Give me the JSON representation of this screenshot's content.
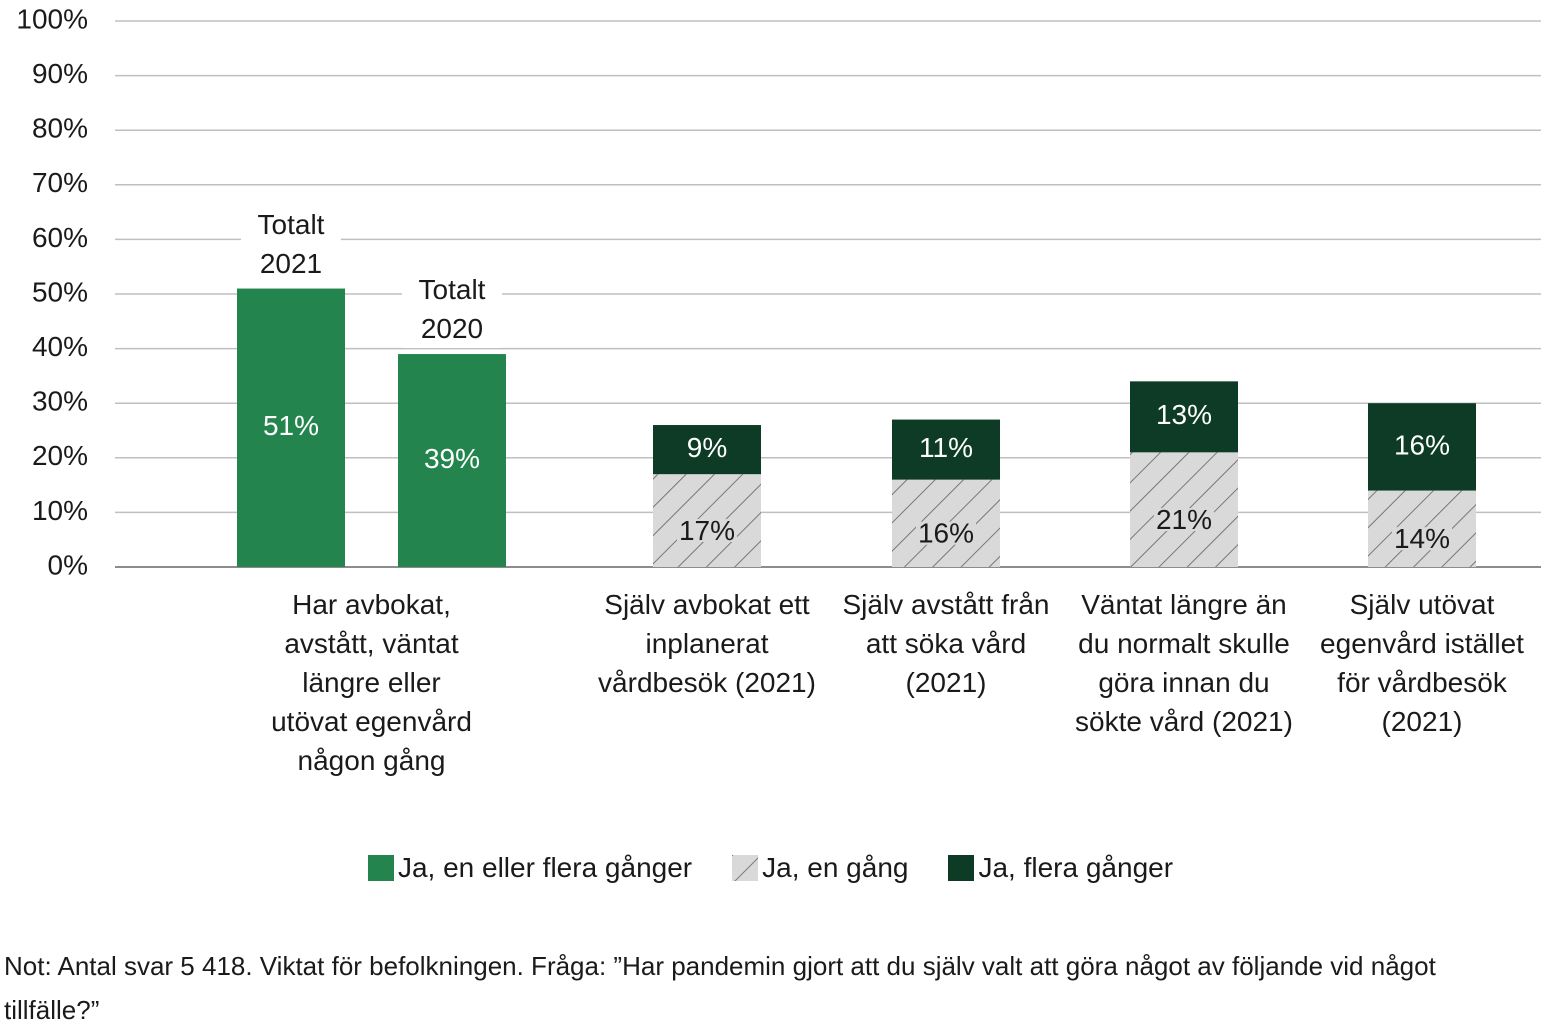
{
  "chart_data": {
    "type": "bar",
    "stacked": true,
    "categories": [
      "Har avbokat, avstått, väntat längre eller utövat egenvård någon gång",
      null,
      "Själv avbokat ett inplanerat vårdbesök (2021)",
      "Själv avstått från att söka vård (2021)",
      "Väntat längre än du normalt skulle göra innan du sökte vård (2021)",
      "Själv utövat egenvård istället för vårdbesök (2021)"
    ],
    "series": [
      {
        "name": "Ja, en eller flera gånger",
        "color": "#23854d",
        "values": [
          51,
          39,
          null,
          null,
          null,
          null
        ],
        "value_labels": [
          "51%",
          "39%",
          null,
          null,
          null,
          null
        ],
        "annotations": [
          "Totalt 2021",
          "Totalt 2020",
          null,
          null,
          null,
          null
        ]
      },
      {
        "name": "Ja, en gång",
        "color": "#d9d9d9",
        "hatch": true,
        "values": [
          null,
          null,
          17,
          16,
          21,
          14
        ],
        "value_labels": [
          null,
          null,
          "17%",
          "16%",
          "21%",
          "14%"
        ]
      },
      {
        "name": "Ja, flera gånger",
        "color": "#0d3b26",
        "values": [
          null,
          null,
          9,
          11,
          13,
          16
        ],
        "value_labels": [
          null,
          null,
          "9%",
          "11%",
          "13%",
          "16%"
        ]
      }
    ],
    "ylim": [
      0,
      100
    ],
    "yticks": [
      {
        "value": 0,
        "label": "0%"
      },
      {
        "value": 10,
        "label": "10%"
      },
      {
        "value": 20,
        "label": "20%"
      },
      {
        "value": 30,
        "label": "30%"
      },
      {
        "value": 40,
        "label": "40%"
      },
      {
        "value": 50,
        "label": "50%"
      },
      {
        "value": 60,
        "label": "60%"
      },
      {
        "value": 70,
        "label": "70%"
      },
      {
        "value": 80,
        "label": "80%"
      },
      {
        "value": 90,
        "label": "90%"
      },
      {
        "value": 100,
        "label": "100%"
      }
    ],
    "grid": true,
    "legend": "bottom",
    "note": "Not: Antal svar 5 418. Viktat för befolkningen. Fråga: ”Har pandemin gjort att du själv valt att göra något av följande vid något tillfälle?”"
  }
}
